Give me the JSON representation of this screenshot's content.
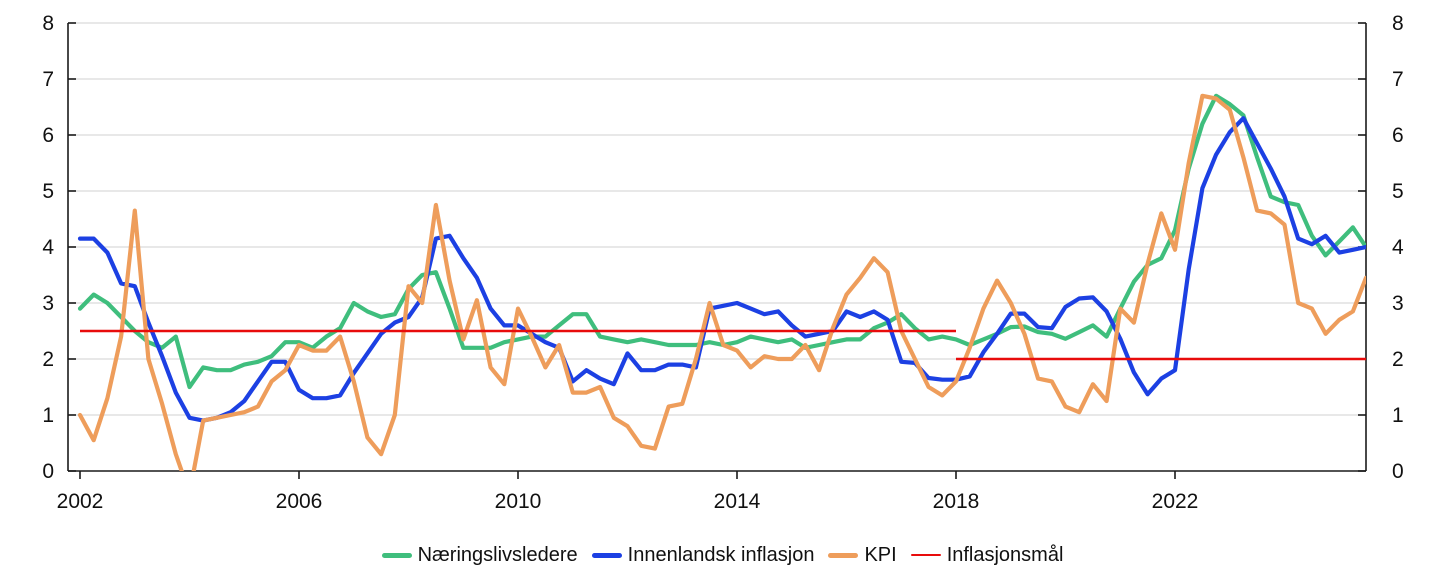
{
  "chart_data": {
    "type": "line",
    "title": "",
    "xlabel": "",
    "ylabel": "",
    "ylim": [
      0,
      8
    ],
    "y_ticks": [
      "0",
      "1",
      "2",
      "3",
      "4",
      "5",
      "6",
      "7",
      "8"
    ],
    "x_axis_ticks": [
      2002,
      2006,
      2010,
      2014,
      2018,
      2022
    ],
    "x_tick_labels": [
      "2002",
      "2006",
      "2010",
      "2014",
      "2018",
      "2022"
    ],
    "x_start": 2002.0,
    "x_step": 0.25,
    "x_axis_end": 2025.5,
    "grid": true,
    "legend_position": "bottom",
    "colors": {
      "grid": "#d9d9d9",
      "axis": "#1a1a1a",
      "text": "#111111"
    },
    "series": [
      {
        "name": "Næringslivsledere",
        "color": "#3fbe7d",
        "values": [
          2.9,
          3.15,
          3.0,
          2.75,
          2.5,
          2.3,
          2.2,
          2.4,
          1.5,
          1.85,
          1.8,
          1.8,
          1.9,
          1.95,
          2.05,
          2.3,
          2.3,
          2.2,
          2.4,
          2.55,
          3.0,
          2.85,
          2.75,
          2.8,
          3.25,
          3.5,
          3.55,
          2.9,
          2.2,
          2.2,
          2.2,
          2.3,
          2.35,
          2.4,
          2.4,
          2.6,
          2.8,
          2.8,
          2.4,
          2.35,
          2.3,
          2.35,
          2.3,
          2.25,
          2.25,
          2.25,
          2.3,
          2.25,
          2.3,
          2.4,
          2.35,
          2.3,
          2.35,
          2.2,
          2.25,
          2.3,
          2.35,
          2.35,
          2.55,
          2.65,
          2.8,
          2.55,
          2.35,
          2.4,
          2.35,
          2.25,
          2.35,
          2.45,
          2.57,
          2.58,
          2.48,
          2.45,
          2.36,
          2.48,
          2.6,
          2.4,
          2.9,
          3.38,
          3.68,
          3.8,
          4.3,
          5.4,
          6.2,
          6.7,
          6.55,
          6.35,
          5.6,
          4.9,
          4.8,
          4.75,
          4.2,
          3.85,
          4.1,
          4.35,
          4.0
        ]
      },
      {
        "name": "Innenlandsk inflasjon",
        "color": "#1c40e3",
        "values": [
          4.15,
          4.15,
          3.9,
          3.35,
          3.3,
          2.65,
          2.05,
          1.4,
          0.95,
          0.9,
          0.95,
          1.05,
          1.25,
          1.6,
          1.95,
          1.95,
          1.45,
          1.3,
          1.3,
          1.35,
          1.75,
          2.1,
          2.45,
          2.65,
          2.75,
          3.1,
          4.15,
          4.2,
          3.8,
          3.45,
          2.9,
          2.6,
          2.6,
          2.45,
          2.3,
          2.2,
          1.6,
          1.8,
          1.65,
          1.55,
          2.1,
          1.8,
          1.8,
          1.9,
          1.9,
          1.85,
          2.9,
          2.95,
          3.0,
          2.9,
          2.8,
          2.85,
          2.6,
          2.4,
          2.45,
          2.5,
          2.85,
          2.75,
          2.85,
          2.7,
          1.95,
          1.93,
          1.66,
          1.63,
          1.63,
          1.69,
          2.12,
          2.45,
          2.81,
          2.81,
          2.57,
          2.55,
          2.93,
          3.08,
          3.1,
          2.85,
          2.36,
          1.76,
          1.37,
          1.65,
          1.8,
          3.6,
          5.05,
          5.65,
          6.05,
          6.3,
          5.85,
          5.4,
          4.9,
          4.15,
          4.05,
          4.2,
          3.9,
          3.95,
          4.0
        ]
      },
      {
        "name": "KPI",
        "color": "#ee9d5b",
        "values": [
          1.0,
          0.55,
          1.3,
          2.4,
          4.65,
          2.0,
          1.2,
          0.3,
          -0.4,
          0.9,
          0.95,
          1.0,
          1.05,
          1.15,
          1.6,
          1.8,
          2.25,
          2.15,
          2.15,
          2.4,
          1.6,
          0.6,
          0.3,
          1.0,
          3.3,
          3.0,
          4.75,
          3.4,
          2.35,
          3.05,
          1.85,
          1.55,
          2.9,
          2.4,
          1.85,
          2.25,
          1.4,
          1.4,
          1.5,
          0.95,
          0.8,
          0.45,
          0.4,
          1.15,
          1.2,
          2.0,
          3.0,
          2.25,
          2.15,
          1.85,
          2.05,
          2.0,
          2.0,
          2.25,
          1.8,
          2.55,
          3.15,
          3.45,
          3.8,
          3.55,
          2.5,
          2.0,
          1.5,
          1.35,
          1.6,
          2.2,
          2.9,
          3.4,
          3.0,
          2.45,
          1.65,
          1.6,
          1.15,
          1.05,
          1.55,
          1.25,
          2.9,
          2.65,
          3.7,
          4.6,
          3.95,
          5.5,
          6.7,
          6.65,
          6.45,
          5.6,
          4.65,
          4.6,
          4.4,
          3.0,
          2.9,
          2.45,
          2.7,
          2.85,
          3.45
        ]
      },
      {
        "name": "Inflasjonsmål",
        "color": "#e80c0c",
        "type": "target-segments",
        "segments": [
          {
            "x0": 2002.0,
            "x1": 2018.0,
            "y": 2.5
          },
          {
            "x0": 2018.0,
            "x1": 2025.5,
            "y": 2.0
          }
        ]
      }
    ]
  }
}
